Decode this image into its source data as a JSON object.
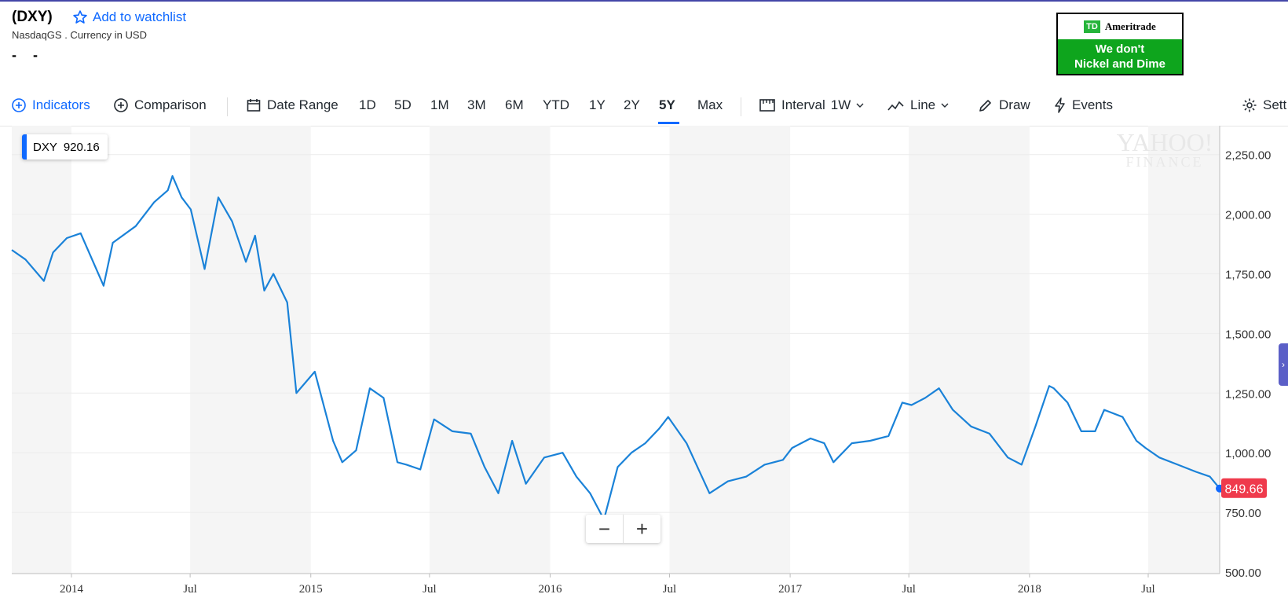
{
  "header": {
    "ticker": "(DXY)",
    "watchlist": "Add to watchlist",
    "exchange": "NasdaqGS . Currency in USD",
    "price": "- -"
  },
  "ad": {
    "logo": "TD",
    "brand": "Ameritrade",
    "line1": "We don't",
    "line2": "Nickel and Dime"
  },
  "toolbar": {
    "indicators": "Indicators",
    "comparison": "Comparison",
    "date_range": "Date Range",
    "ranges": [
      "1D",
      "5D",
      "1M",
      "3M",
      "6M",
      "YTD",
      "1Y",
      "2Y",
      "5Y",
      "Max"
    ],
    "selected_range": "5Y",
    "interval_label": "Interval",
    "interval_value": "1W",
    "chart_type": "Line",
    "draw": "Draw",
    "events": "Events",
    "settings": "Sett"
  },
  "legend": {
    "symbol": "DXY",
    "value": "920.16"
  },
  "watermark": {
    "line1": "YAHOO!",
    "line2": "FINANCE"
  },
  "zoom": {
    "out": "−",
    "in": "+"
  },
  "colors": {
    "line": "#1a82d8",
    "accent": "#0f69ff",
    "last_price_tag": "#ef3a4c",
    "shade": "#f5f5f5"
  },
  "chart_data": {
    "type": "line",
    "title": "",
    "xlabel": "",
    "ylabel": "",
    "ylim": [
      500,
      2400
    ],
    "y_ticks": [
      "2,250.00",
      "2,000.00",
      "1,750.00",
      "1,500.00",
      "1,250.00",
      "1,000.00",
      "750.00",
      "500.00"
    ],
    "y_tick_values": [
      2250,
      2000,
      1750,
      1500,
      1250,
      1000,
      750,
      500
    ],
    "x_ticks": [
      {
        "label": "2014",
        "date": "2014-01-01"
      },
      {
        "label": "Jul",
        "date": "2014-07-01"
      },
      {
        "label": "2015",
        "date": "2015-01-01"
      },
      {
        "label": "Jul",
        "date": "2015-07-01"
      },
      {
        "label": "2016",
        "date": "2016-01-01"
      },
      {
        "label": "Jul",
        "date": "2016-07-01"
      },
      {
        "label": "2017",
        "date": "2017-01-01"
      },
      {
        "label": "Jul",
        "date": "2017-07-01"
      },
      {
        "label": "2018",
        "date": "2018-01-01"
      },
      {
        "label": "Jul",
        "date": "2018-07-01"
      }
    ],
    "x_range": [
      "2013-10-02",
      "2018-10-18"
    ],
    "shaded_bands": [
      [
        "2013-10-02",
        "2014-01-01"
      ],
      [
        "2014-07-01",
        "2015-01-01"
      ],
      [
        "2015-07-01",
        "2016-01-01"
      ],
      [
        "2016-07-01",
        "2017-01-01"
      ],
      [
        "2017-07-01",
        "2018-01-01"
      ],
      [
        "2018-07-01",
        "2018-10-18"
      ]
    ],
    "grid": true,
    "last_value": "849.66",
    "series": [
      {
        "x": [
          "2013-10-02",
          "2013-10-23",
          "2013-11-20",
          "2013-12-04",
          "2013-12-25",
          "2014-01-15",
          "2014-02-19",
          "2014-03-05",
          "2014-04-09",
          "2014-05-07",
          "2014-05-28",
          "2014-06-04",
          "2014-06-18",
          "2014-07-02",
          "2014-07-23",
          "2014-08-13",
          "2014-09-03",
          "2014-09-24",
          "2014-10-08",
          "2014-10-22",
          "2014-11-05",
          "2014-11-26",
          "2014-12-10",
          "2015-01-07",
          "2015-02-04",
          "2015-02-18",
          "2015-03-11",
          "2015-04-01",
          "2015-04-22",
          "2015-05-13",
          "2015-05-27",
          "2015-06-17",
          "2015-07-08",
          "2015-08-05",
          "2015-09-02",
          "2015-09-23",
          "2015-10-14",
          "2015-11-04",
          "2015-11-25",
          "2015-12-23",
          "2016-01-20",
          "2016-02-10",
          "2016-03-02",
          "2016-03-23",
          "2016-04-13",
          "2016-05-04",
          "2016-05-25",
          "2016-06-15",
          "2016-06-29",
          "2016-07-27",
          "2016-08-31",
          "2016-09-28",
          "2016-10-26",
          "2016-11-23",
          "2016-12-21",
          "2017-01-04",
          "2017-02-01",
          "2017-02-22",
          "2017-03-08",
          "2017-04-05",
          "2017-05-03",
          "2017-05-31",
          "2017-06-21",
          "2017-07-05",
          "2017-07-26",
          "2017-08-16",
          "2017-09-06",
          "2017-10-04",
          "2017-11-01",
          "2017-11-29",
          "2017-12-20",
          "2018-01-10",
          "2018-01-31",
          "2018-02-07",
          "2018-02-28",
          "2018-03-21",
          "2018-04-11",
          "2018-04-25",
          "2018-05-23",
          "2018-06-13",
          "2018-06-27",
          "2018-07-18",
          "2018-08-15",
          "2018-09-12",
          "2018-10-03",
          "2018-10-18"
        ],
        "y": [
          1850,
          1810,
          1720,
          1840,
          1900,
          1920,
          1700,
          1880,
          1950,
          2050,
          2100,
          2160,
          2070,
          2020,
          1770,
          2070,
          1970,
          1800,
          1910,
          1680,
          1750,
          1630,
          1250,
          1340,
          1050,
          960,
          1010,
          1270,
          1230,
          960,
          950,
          930,
          1140,
          1090,
          1080,
          940,
          830,
          1050,
          870,
          980,
          1000,
          900,
          830,
          720,
          940,
          1000,
          1040,
          1100,
          1150,
          1040,
          830,
          880,
          900,
          950,
          970,
          1020,
          1060,
          1040,
          960,
          1040,
          1050,
          1070,
          1210,
          1200,
          1230,
          1270,
          1180,
          1110,
          1080,
          980,
          950,
          1110,
          1280,
          1270,
          1210,
          1090,
          1090,
          1180,
          1150,
          1050,
          1020,
          980,
          950,
          920,
          900,
          850
        ]
      }
    ]
  }
}
